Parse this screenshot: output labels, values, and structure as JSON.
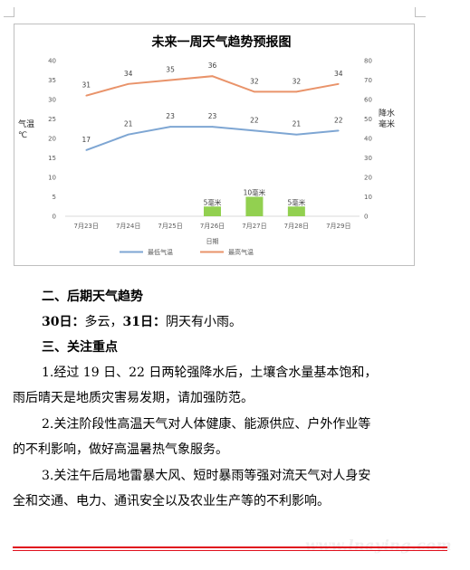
{
  "chart_data": {
    "type": "line+bar",
    "title": "未来一周天气趋势预报图",
    "xlabel": "日期",
    "ylabel_left": "气温℃",
    "ylabel_right": "降水毫米",
    "categories": [
      "7月23日",
      "7月24日",
      "7月25日",
      "7月26日",
      "7月27日",
      "7月28日",
      "7月29日"
    ],
    "left_axis": {
      "min": 0,
      "max": 40,
      "step": 5,
      "ticks": [
        "0",
        "5",
        "10",
        "15",
        "20",
        "25",
        "30",
        "35",
        "40"
      ]
    },
    "right_axis": {
      "min": 0,
      "max": 80,
      "step": 10,
      "ticks": [
        "0",
        "10",
        "20",
        "30",
        "40",
        "50",
        "60",
        "70",
        "80"
      ]
    },
    "series": [
      {
        "name": "最低气温",
        "axis": "left",
        "kind": "line",
        "color": "#7ea6d3",
        "values": [
          17,
          21,
          23,
          23,
          22,
          21,
          22
        ],
        "labels": [
          "17",
          "21",
          "23",
          "23",
          "22",
          "21",
          "22"
        ]
      },
      {
        "name": "最高气温",
        "axis": "left",
        "kind": "line",
        "color": "#e9936a",
        "values": [
          31,
          34,
          35,
          36,
          32,
          32,
          34
        ],
        "labels": [
          "31",
          "34",
          "35",
          "36",
          "32",
          "32",
          "34"
        ]
      },
      {
        "kind": "bar",
        "axis": "right",
        "color": "#92d050",
        "values": [
          0,
          0,
          0,
          5,
          10,
          5,
          0
        ],
        "labels": [
          "",
          "",
          "",
          "5毫米",
          "10毫米",
          "5毫米",
          ""
        ]
      }
    ],
    "legend": {
      "position": "bottom",
      "entries": [
        "最低气温",
        "最高气温"
      ]
    },
    "grid": false
  },
  "doc": {
    "section2_heading": "二、后期天气趋势",
    "forecast_day30": "30日：",
    "forecast_day30_text": "多云，",
    "forecast_day31": "31日：",
    "forecast_day31_text": "阴天有小雨。",
    "section3_heading": "三、关注重点",
    "p1_line1": "1.经过 19 日、22 日两轮强降水后，土壤含水量基本饱和，",
    "p1_line2": "雨后晴天是地质灾害易发期，请加强防范。",
    "p2_line1": "2.关注阶段性高温天气对人体健康、能源供应、户外作业等",
    "p2_line2": "的不利影响，做好高温暑热气象服务。",
    "p3_line1": "3.关注午后局地雷暴大风、短时暴雨等强对流天气对人身安",
    "p3_line2": "全和交通、电力、通讯安全以及农业生产等的不利影响。",
    "watermark": "www.lnaying.com"
  }
}
